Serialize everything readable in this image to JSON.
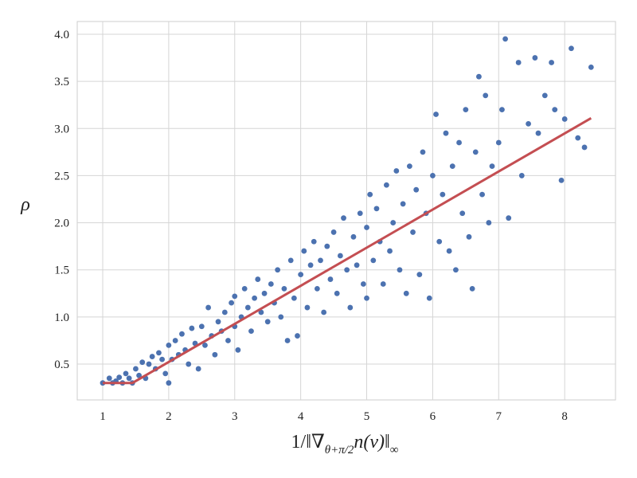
{
  "chart_data": {
    "type": "scatter",
    "xlabel": [
      "1/‖∇",
      "θ+π/2",
      "n(v)‖",
      "∞"
    ],
    "ylabel": "ρ",
    "xlim": [
      0.614,
      8.77
    ],
    "ylim": [
      0.12,
      4.135
    ],
    "xticks": [
      1,
      2,
      3,
      4,
      5,
      6,
      7,
      8
    ],
    "yticks": [
      0.5,
      {
        "value": 1,
        "label": "1.0"
      },
      1.5,
      {
        "value": 2,
        "label": "2.0"
      },
      2.5,
      {
        "value": 3,
        "label": "3.0"
      },
      3.5,
      {
        "value": 4,
        "label": "4.0"
      }
    ],
    "grid": true,
    "points": {
      "color": "#4c72b0",
      "x": [
        1.0,
        1.1,
        1.15,
        1.2,
        1.25,
        1.3,
        1.35,
        1.4,
        1.45,
        1.5,
        1.55,
        1.6,
        1.65,
        1.7,
        1.75,
        1.8,
        1.85,
        1.9,
        1.95,
        2.0,
        2.0,
        2.05,
        2.1,
        2.15,
        2.2,
        2.25,
        2.3,
        2.35,
        2.4,
        2.45,
        2.5,
        2.55,
        2.6,
        2.65,
        2.7,
        2.75,
        2.8,
        2.85,
        2.9,
        2.95,
        3.0,
        3.0,
        3.05,
        3.1,
        3.15,
        3.2,
        3.25,
        3.3,
        3.35,
        3.4,
        3.45,
        3.5,
        3.55,
        3.6,
        3.65,
        3.7,
        3.75,
        3.8,
        3.85,
        3.9,
        3.95,
        4.0,
        4.05,
        4.1,
        4.15,
        4.2,
        4.25,
        4.3,
        4.35,
        4.4,
        4.45,
        4.5,
        4.55,
        4.6,
        4.65,
        4.7,
        4.75,
        4.8,
        4.85,
        4.9,
        4.95,
        5.0,
        5.0,
        5.05,
        5.1,
        5.15,
        5.2,
        5.25,
        5.3,
        5.35,
        5.4,
        5.45,
        5.5,
        5.55,
        5.6,
        5.65,
        5.7,
        5.75,
        5.8,
        5.85,
        5.9,
        5.95,
        6.0,
        6.05,
        6.1,
        6.15,
        6.2,
        6.25,
        6.3,
        6.35,
        6.4,
        6.45,
        6.5,
        6.55,
        6.6,
        6.65,
        6.7,
        6.75,
        6.8,
        6.85,
        6.9,
        7.0,
        7.05,
        7.1,
        7.15,
        7.3,
        7.35,
        7.45,
        7.55,
        7.6,
        7.7,
        7.8,
        7.85,
        7.95,
        8.0,
        8.1,
        8.2,
        8.3,
        8.4
      ],
      "y": [
        0.3,
        0.35,
        0.3,
        0.32,
        0.36,
        0.3,
        0.4,
        0.35,
        0.3,
        0.45,
        0.38,
        0.52,
        0.35,
        0.5,
        0.58,
        0.45,
        0.62,
        0.55,
        0.4,
        0.7,
        0.3,
        0.55,
        0.75,
        0.6,
        0.82,
        0.65,
        0.5,
        0.88,
        0.72,
        0.45,
        0.9,
        0.7,
        1.1,
        0.8,
        0.6,
        0.95,
        0.85,
        1.05,
        0.75,
        1.15,
        0.9,
        1.22,
        0.65,
        1.0,
        1.3,
        1.1,
        0.85,
        1.2,
        1.4,
        1.05,
        1.25,
        0.95,
        1.35,
        1.15,
        1.5,
        1.0,
        1.3,
        0.75,
        1.6,
        1.2,
        0.8,
        1.45,
        1.7,
        1.1,
        1.55,
        1.8,
        1.3,
        1.6,
        1.05,
        1.75,
        1.4,
        1.9,
        1.25,
        1.65,
        2.05,
        1.5,
        1.1,
        1.85,
        1.55,
        2.1,
        1.35,
        1.95,
        1.2,
        2.3,
        1.6,
        2.15,
        1.8,
        1.35,
        2.4,
        1.7,
        2.0,
        2.55,
        1.5,
        2.2,
        1.25,
        2.6,
        1.9,
        2.35,
        1.45,
        2.75,
        2.1,
        1.2,
        2.5,
        3.15,
        1.8,
        2.3,
        2.95,
        1.7,
        2.6,
        1.5,
        2.85,
        2.1,
        3.2,
        1.85,
        1.3,
        2.75,
        3.55,
        2.3,
        3.35,
        2.0,
        2.6,
        2.85,
        3.2,
        3.95,
        2.05,
        3.7,
        2.5,
        3.05,
        3.75,
        2.95,
        3.35,
        3.7,
        3.2,
        2.45,
        3.1,
        3.85,
        2.9,
        2.8,
        3.65
      ]
    },
    "fit": {
      "color": "#c44e52",
      "x": [
        1,
        1.45,
        8.4
      ],
      "y": [
        0.3,
        0.3,
        3.11
      ]
    }
  }
}
